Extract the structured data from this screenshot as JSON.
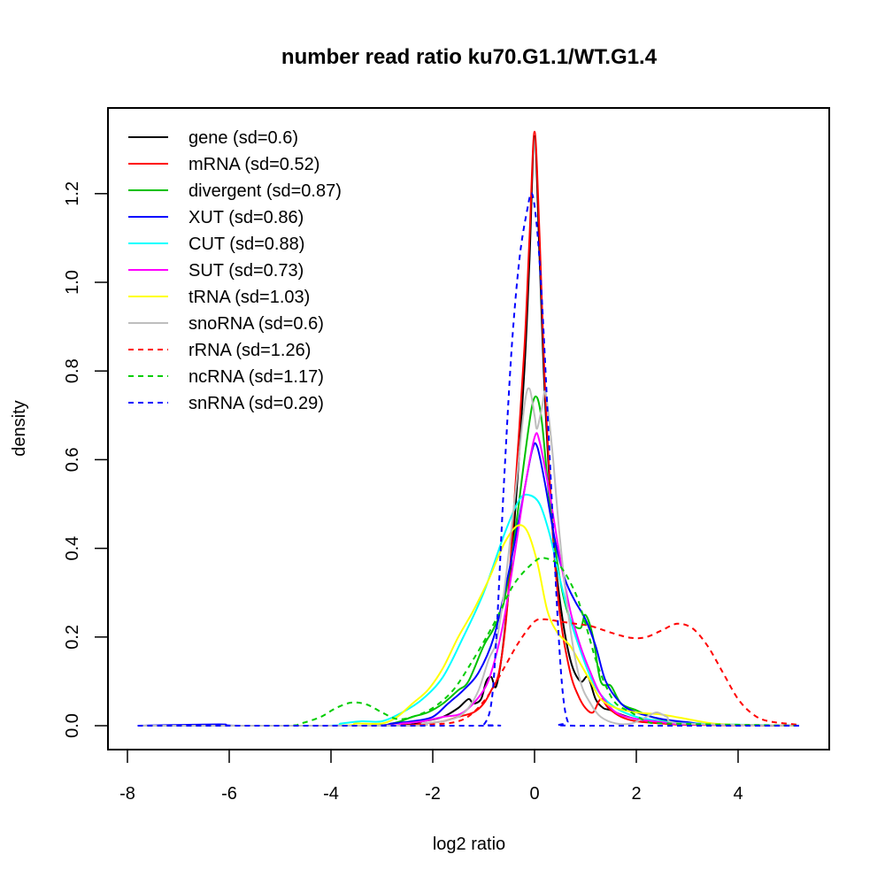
{
  "chart_data": {
    "type": "line",
    "title": "number read ratio ku70.G1.1/WT.G1.4",
    "xlabel": "log2 ratio",
    "ylabel": "density",
    "xlim": [
      -8.1,
      5.6
    ],
    "ylim": [
      -0.05,
      1.39
    ],
    "xticks": [
      -8,
      -6,
      -4,
      -2,
      0,
      2,
      4
    ],
    "xtick_labels": [
      "-8",
      "-6",
      "-4",
      "-2",
      "0",
      "2",
      "4"
    ],
    "yticks": [
      0.0,
      0.2,
      0.4,
      0.6,
      0.8,
      1.0,
      1.2
    ],
    "ytick_labels": [
      "0.0",
      "0.2",
      "0.4",
      "0.6",
      "0.8",
      "1.0",
      "1.2"
    ],
    "grid": false,
    "legend_position": "top-left",
    "series": [
      {
        "name": "gene (sd=0.6)",
        "color": "#000000",
        "dash": "solid",
        "points": [
          [
            -7.8,
            0
          ],
          [
            -3,
            0
          ],
          [
            -2.2,
            0.01
          ],
          [
            -1.8,
            0.02
          ],
          [
            -1.5,
            0.04
          ],
          [
            -1.3,
            0.06
          ],
          [
            -1.2,
            0.05
          ],
          [
            -1.05,
            0.06
          ],
          [
            -0.95,
            0.1
          ],
          [
            -0.85,
            0.11
          ],
          [
            -0.75,
            0.09
          ],
          [
            -0.6,
            0.2
          ],
          [
            -0.4,
            0.45
          ],
          [
            -0.2,
            0.8
          ],
          [
            -0.1,
            1.05
          ],
          [
            0,
            1.33
          ],
          [
            0.1,
            1.05
          ],
          [
            0.2,
            0.75
          ],
          [
            0.35,
            0.45
          ],
          [
            0.5,
            0.28
          ],
          [
            0.7,
            0.15
          ],
          [
            0.9,
            0.1
          ],
          [
            1.05,
            0.11
          ],
          [
            1.2,
            0.06
          ],
          [
            1.35,
            0.04
          ],
          [
            1.5,
            0.035
          ],
          [
            1.7,
            0.025
          ],
          [
            2,
            0.015
          ],
          [
            2.5,
            0.008
          ],
          [
            3,
            0.003
          ],
          [
            5.2,
            0
          ]
        ]
      },
      {
        "name": "mRNA (sd=0.52)",
        "color": "#ff0000",
        "dash": "solid",
        "points": [
          [
            -7.8,
            0
          ],
          [
            -3,
            0
          ],
          [
            -2.2,
            0.005
          ],
          [
            -1.8,
            0.01
          ],
          [
            -1.5,
            0.02
          ],
          [
            -1.2,
            0.03
          ],
          [
            -1,
            0.05
          ],
          [
            -0.85,
            0.08
          ],
          [
            -0.7,
            0.12
          ],
          [
            -0.55,
            0.25
          ],
          [
            -0.4,
            0.5
          ],
          [
            -0.2,
            0.85
          ],
          [
            -0.1,
            1.1
          ],
          [
            0,
            1.34
          ],
          [
            0.1,
            1.1
          ],
          [
            0.2,
            0.78
          ],
          [
            0.35,
            0.45
          ],
          [
            0.5,
            0.25
          ],
          [
            0.7,
            0.12
          ],
          [
            0.85,
            0.07
          ],
          [
            1,
            0.04
          ],
          [
            1.15,
            0.03
          ],
          [
            1.3,
            0.06
          ],
          [
            1.45,
            0.04
          ],
          [
            1.7,
            0.02
          ],
          [
            2,
            0.01
          ],
          [
            2.5,
            0.005
          ],
          [
            3,
            0.002
          ],
          [
            5.2,
            0
          ]
        ]
      },
      {
        "name": "divergent (sd=0.87)",
        "color": "#00c000",
        "dash": "solid",
        "points": [
          [
            -7.8,
            0
          ],
          [
            -3.5,
            0
          ],
          [
            -2.8,
            0.005
          ],
          [
            -2.4,
            0.02
          ],
          [
            -2.1,
            0.03
          ],
          [
            -1.8,
            0.05
          ],
          [
            -1.5,
            0.08
          ],
          [
            -1.3,
            0.1
          ],
          [
            -1.0,
            0.18
          ],
          [
            -0.8,
            0.22
          ],
          [
            -0.6,
            0.28
          ],
          [
            -0.4,
            0.42
          ],
          [
            -0.2,
            0.6
          ],
          [
            -0.05,
            0.72
          ],
          [
            0.05,
            0.74
          ],
          [
            0.15,
            0.68
          ],
          [
            0.3,
            0.5
          ],
          [
            0.5,
            0.33
          ],
          [
            0.7,
            0.24
          ],
          [
            0.9,
            0.22
          ],
          [
            1.0,
            0.25
          ],
          [
            1.15,
            0.2
          ],
          [
            1.3,
            0.1
          ],
          [
            1.5,
            0.09
          ],
          [
            1.7,
            0.05
          ],
          [
            2,
            0.035
          ],
          [
            2.3,
            0.02
          ],
          [
            2.7,
            0.01
          ],
          [
            3.5,
            0.003
          ],
          [
            5.2,
            0
          ]
        ]
      },
      {
        "name": "XUT (sd=0.86)",
        "color": "#0000ff",
        "dash": "solid",
        "points": [
          [
            -7.8,
            0
          ],
          [
            -6.2,
            0.003
          ],
          [
            -5.8,
            0
          ],
          [
            -3.2,
            0
          ],
          [
            -2.8,
            0.005
          ],
          [
            -2.4,
            0.01
          ],
          [
            -2.0,
            0.02
          ],
          [
            -1.7,
            0.05
          ],
          [
            -1.4,
            0.08
          ],
          [
            -1.1,
            0.12
          ],
          [
            -0.8,
            0.2
          ],
          [
            -0.5,
            0.35
          ],
          [
            -0.25,
            0.5
          ],
          [
            -0.05,
            0.62
          ],
          [
            0.05,
            0.63
          ],
          [
            0.2,
            0.55
          ],
          [
            0.4,
            0.42
          ],
          [
            0.6,
            0.33
          ],
          [
            0.8,
            0.28
          ],
          [
            1.0,
            0.24
          ],
          [
            1.2,
            0.18
          ],
          [
            1.4,
            0.1
          ],
          [
            1.7,
            0.05
          ],
          [
            2,
            0.03
          ],
          [
            2.5,
            0.015
          ],
          [
            3,
            0.008
          ],
          [
            3.5,
            0.003
          ],
          [
            5.2,
            0
          ]
        ]
      },
      {
        "name": "CUT (sd=0.88)",
        "color": "#00ffff",
        "dash": "solid",
        "points": [
          [
            -7.8,
            0
          ],
          [
            -4.2,
            0
          ],
          [
            -3.8,
            0.005
          ],
          [
            -3.4,
            0.01
          ],
          [
            -3.0,
            0.01
          ],
          [
            -2.6,
            0.03
          ],
          [
            -2.2,
            0.06
          ],
          [
            -1.8,
            0.11
          ],
          [
            -1.4,
            0.2
          ],
          [
            -1.0,
            0.3
          ],
          [
            -0.6,
            0.43
          ],
          [
            -0.3,
            0.51
          ],
          [
            -0.1,
            0.52
          ],
          [
            0.1,
            0.5
          ],
          [
            0.3,
            0.43
          ],
          [
            0.5,
            0.33
          ],
          [
            0.7,
            0.24
          ],
          [
            0.9,
            0.17
          ],
          [
            1.1,
            0.11
          ],
          [
            1.3,
            0.07
          ],
          [
            1.6,
            0.04
          ],
          [
            2,
            0.02
          ],
          [
            2.5,
            0.01
          ],
          [
            3,
            0.005
          ],
          [
            5.2,
            0
          ]
        ]
      },
      {
        "name": "SUT (sd=0.73)",
        "color": "#ff00ff",
        "dash": "solid",
        "points": [
          [
            -7.8,
            0
          ],
          [
            -3.2,
            0
          ],
          [
            -2.6,
            0.005
          ],
          [
            -2.2,
            0.01
          ],
          [
            -1.8,
            0.02
          ],
          [
            -1.4,
            0.03
          ],
          [
            -1.0,
            0.08
          ],
          [
            -0.8,
            0.14
          ],
          [
            -0.6,
            0.24
          ],
          [
            -0.4,
            0.38
          ],
          [
            -0.2,
            0.53
          ],
          [
            0,
            0.65
          ],
          [
            0.1,
            0.64
          ],
          [
            0.3,
            0.52
          ],
          [
            0.5,
            0.38
          ],
          [
            0.7,
            0.26
          ],
          [
            0.9,
            0.18
          ],
          [
            1.1,
            0.12
          ],
          [
            1.3,
            0.07
          ],
          [
            1.6,
            0.03
          ],
          [
            2,
            0.015
          ],
          [
            2.5,
            0.008
          ],
          [
            3,
            0.003
          ],
          [
            5.2,
            0
          ]
        ]
      },
      {
        "name": "tRNA (sd=1.03)",
        "color": "#ffff00",
        "dash": "solid",
        "points": [
          [
            -7.8,
            0
          ],
          [
            -4,
            0
          ],
          [
            -3.5,
            0.005
          ],
          [
            -3.0,
            0.005
          ],
          [
            -2.7,
            0.02
          ],
          [
            -2.4,
            0.05
          ],
          [
            -2.1,
            0.08
          ],
          [
            -1.8,
            0.13
          ],
          [
            -1.5,
            0.2
          ],
          [
            -1.2,
            0.26
          ],
          [
            -0.9,
            0.33
          ],
          [
            -0.6,
            0.41
          ],
          [
            -0.35,
            0.45
          ],
          [
            -0.15,
            0.44
          ],
          [
            0.05,
            0.37
          ],
          [
            0.25,
            0.26
          ],
          [
            0.45,
            0.21
          ],
          [
            0.7,
            0.18
          ],
          [
            0.9,
            0.14
          ],
          [
            1.1,
            0.1
          ],
          [
            1.3,
            0.06
          ],
          [
            1.6,
            0.04
          ],
          [
            2,
            0.03
          ],
          [
            2.5,
            0.025
          ],
          [
            3,
            0.015
          ],
          [
            3.5,
            0.005
          ],
          [
            4,
            0.002
          ],
          [
            5.2,
            0
          ]
        ]
      },
      {
        "name": "snoRNA (sd=0.6)",
        "color": "#bebebe",
        "dash": "solid",
        "points": [
          [
            -7.8,
            0
          ],
          [
            -2.6,
            0
          ],
          [
            -2.2,
            0.005
          ],
          [
            -1.8,
            0.01
          ],
          [
            -1.5,
            0.02
          ],
          [
            -1.3,
            0.04
          ],
          [
            -1.1,
            0.08
          ],
          [
            -0.9,
            0.15
          ],
          [
            -0.75,
            0.19
          ],
          [
            -0.6,
            0.3
          ],
          [
            -0.4,
            0.5
          ],
          [
            -0.2,
            0.72
          ],
          [
            -0.1,
            0.76
          ],
          [
            0,
            0.7
          ],
          [
            0.05,
            0.67
          ],
          [
            0.15,
            0.72
          ],
          [
            0.22,
            0.75
          ],
          [
            0.35,
            0.62
          ],
          [
            0.5,
            0.42
          ],
          [
            0.7,
            0.22
          ],
          [
            0.9,
            0.1
          ],
          [
            1.1,
            0.05
          ],
          [
            1.3,
            0.02
          ],
          [
            1.6,
            0.005
          ],
          [
            1.9,
            0.005
          ],
          [
            2.2,
            0.02
          ],
          [
            2.4,
            0.03
          ],
          [
            2.6,
            0.02
          ],
          [
            2.9,
            0.005
          ],
          [
            5.2,
            0
          ]
        ]
      },
      {
        "name": "rRNA (sd=1.26)",
        "color": "#ff0000",
        "dash": "dashed",
        "points": [
          [
            -7.8,
            0
          ],
          [
            -3,
            0
          ],
          [
            -2,
            0.003
          ],
          [
            -1.5,
            0.01
          ],
          [
            -1.2,
            0.03
          ],
          [
            -0.9,
            0.07
          ],
          [
            -0.6,
            0.13
          ],
          [
            -0.3,
            0.19
          ],
          [
            0,
            0.235
          ],
          [
            0.2,
            0.24
          ],
          [
            0.5,
            0.235
          ],
          [
            0.8,
            0.23
          ],
          [
            1.1,
            0.225
          ],
          [
            1.5,
            0.21
          ],
          [
            1.9,
            0.198
          ],
          [
            2.2,
            0.2
          ],
          [
            2.5,
            0.215
          ],
          [
            2.8,
            0.23
          ],
          [
            3.1,
            0.22
          ],
          [
            3.4,
            0.18
          ],
          [
            3.7,
            0.12
          ],
          [
            4.0,
            0.06
          ],
          [
            4.3,
            0.025
          ],
          [
            4.6,
            0.01
          ],
          [
            5.2,
            0.002
          ]
        ]
      },
      {
        "name": "ncRNA (sd=1.17)",
        "color": "#00cd00",
        "dash": "dashed",
        "points": [
          [
            -7.8,
            0
          ],
          [
            -5,
            0
          ],
          [
            -4.6,
            0.005
          ],
          [
            -4.2,
            0.02
          ],
          [
            -3.9,
            0.04
          ],
          [
            -3.6,
            0.052
          ],
          [
            -3.3,
            0.048
          ],
          [
            -3.0,
            0.03
          ],
          [
            -2.7,
            0.015
          ],
          [
            -2.4,
            0.02
          ],
          [
            -2.0,
            0.04
          ],
          [
            -1.6,
            0.08
          ],
          [
            -1.2,
            0.15
          ],
          [
            -0.8,
            0.23
          ],
          [
            -0.4,
            0.32
          ],
          [
            0,
            0.37
          ],
          [
            0.2,
            0.378
          ],
          [
            0.5,
            0.36
          ],
          [
            0.8,
            0.3
          ],
          [
            1.0,
            0.23
          ],
          [
            1.2,
            0.15
          ],
          [
            1.4,
            0.09
          ],
          [
            1.6,
            0.05
          ],
          [
            1.9,
            0.03
          ],
          [
            2.2,
            0.01
          ],
          [
            2.6,
            0.005
          ],
          [
            5.2,
            0
          ]
        ]
      },
      {
        "name": "snRNA (sd=0.29)",
        "color": "#0000ff",
        "dash": "dashed",
        "points": [
          [
            -7.8,
            0
          ],
          [
            -1.2,
            0
          ],
          [
            -1.0,
            0.002
          ],
          [
            -0.85,
            0.05
          ],
          [
            -0.75,
            0.2
          ],
          [
            -0.6,
            0.55
          ],
          [
            -0.45,
            0.85
          ],
          [
            -0.3,
            1.05
          ],
          [
            -0.15,
            1.16
          ],
          [
            -0.05,
            1.2
          ],
          [
            0.05,
            1.12
          ],
          [
            0.15,
            0.95
          ],
          [
            0.3,
            0.6
          ],
          [
            0.45,
            0.25
          ],
          [
            0.55,
            0.08
          ],
          [
            0.65,
            0.01
          ],
          [
            0.8,
            0
          ],
          [
            5.2,
            0
          ]
        ]
      }
    ]
  }
}
